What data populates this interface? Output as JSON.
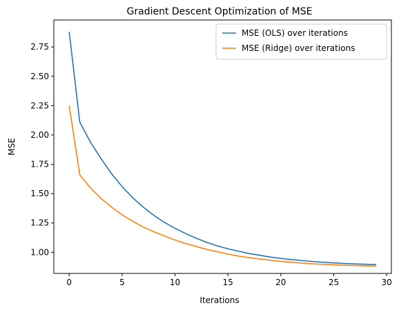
{
  "chart_data": {
    "type": "line",
    "title": "Gradient Descent Optimization of MSE",
    "xlabel": "Iterations",
    "ylabel": "MSE",
    "xlim": [
      -1.45,
      30.45
    ],
    "ylim": [
      0.82,
      2.98
    ],
    "xticks": [
      0,
      5,
      10,
      15,
      20,
      25,
      30
    ],
    "yticks": [
      1.0,
      1.25,
      1.5,
      1.75,
      2.0,
      2.25,
      2.5,
      2.75
    ],
    "xtick_labels": [
      "0",
      "5",
      "10",
      "15",
      "20",
      "25",
      "30"
    ],
    "ytick_labels": [
      "1.00",
      "1.25",
      "1.50",
      "1.75",
      "2.00",
      "2.25",
      "2.50",
      "2.75"
    ],
    "grid": false,
    "legend_position": "top-right",
    "x": [
      0,
      1,
      2,
      3,
      4,
      5,
      6,
      7,
      8,
      9,
      10,
      11,
      12,
      13,
      14,
      15,
      16,
      17,
      18,
      19,
      20,
      21,
      22,
      23,
      24,
      25,
      26,
      27,
      28,
      29
    ],
    "series": [
      {
        "name": "MSE (OLS) over iterations",
        "color": "#1f77b4",
        "values": [
          2.88,
          2.11,
          1.94,
          1.8,
          1.67,
          1.56,
          1.465,
          1.385,
          1.315,
          1.255,
          1.205,
          1.16,
          1.12,
          1.085,
          1.055,
          1.03,
          1.01,
          0.99,
          0.975,
          0.96,
          0.948,
          0.938,
          0.93,
          0.922,
          0.915,
          0.91,
          0.905,
          0.901,
          0.898,
          0.895
        ]
      },
      {
        "name": "MSE (Ridge) over iterations",
        "color": "#ff7f0e",
        "values": [
          2.25,
          1.66,
          1.55,
          1.46,
          1.385,
          1.32,
          1.265,
          1.215,
          1.175,
          1.14,
          1.105,
          1.075,
          1.05,
          1.025,
          1.005,
          0.985,
          0.968,
          0.955,
          0.943,
          0.933,
          0.923,
          0.915,
          0.908,
          0.902,
          0.897,
          0.893,
          0.89,
          0.887,
          0.885,
          0.883
        ]
      }
    ]
  }
}
